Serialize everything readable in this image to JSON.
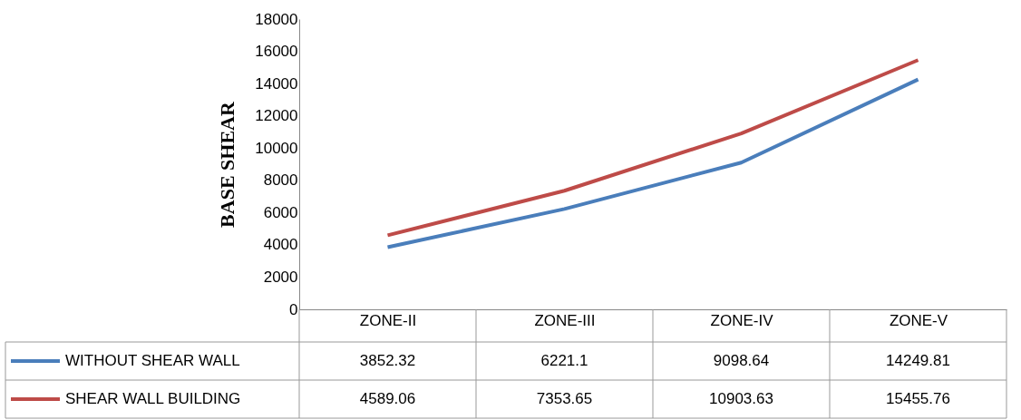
{
  "chart_data": {
    "type": "line",
    "ylabel": "BASE SHEAR",
    "categories": [
      "ZONE-II",
      "ZONE-III",
      "ZONE-IV",
      "ZONE-V"
    ],
    "series": [
      {
        "name": "WITHOUT SHEAR WALL",
        "color": "#4a7ebb",
        "values": [
          3852.32,
          6221.1,
          9098.64,
          14249.81
        ]
      },
      {
        "name": "SHEAR WALL BUILDING",
        "color": "#be4b48",
        "values": [
          4589.06,
          7353.65,
          10903.63,
          15455.76
        ]
      }
    ],
    "ylim": [
      0,
      18000
    ],
    "yticks": [
      0,
      2000,
      4000,
      6000,
      8000,
      10000,
      12000,
      14000,
      16000,
      18000
    ],
    "grid": false,
    "data_labels": true,
    "legend": "bottom",
    "line_style": "solid"
  }
}
